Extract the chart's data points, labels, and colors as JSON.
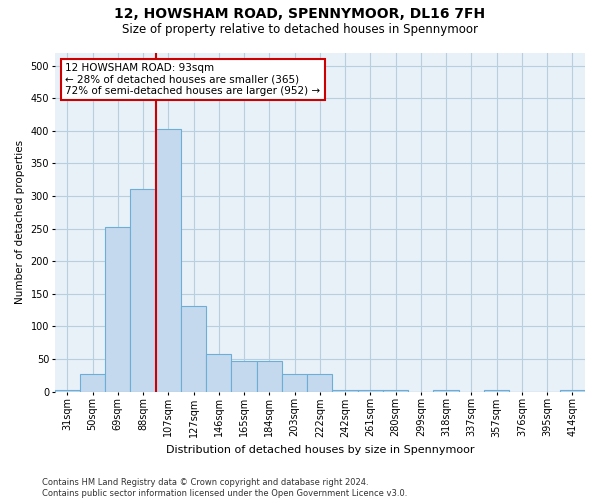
{
  "title": "12, HOWSHAM ROAD, SPENNYMOOR, DL16 7FH",
  "subtitle": "Size of property relative to detached houses in Spennymoor",
  "xlabel": "Distribution of detached houses by size in Spennymoor",
  "ylabel": "Number of detached properties",
  "categories": [
    "31sqm",
    "50sqm",
    "69sqm",
    "88sqm",
    "107sqm",
    "127sqm",
    "146sqm",
    "165sqm",
    "184sqm",
    "203sqm",
    "222sqm",
    "242sqm",
    "261sqm",
    "280sqm",
    "299sqm",
    "318sqm",
    "337sqm",
    "357sqm",
    "376sqm",
    "395sqm",
    "414sqm"
  ],
  "values": [
    2,
    27,
    252,
    310,
    403,
    132,
    57,
    47,
    47,
    27,
    27,
    3,
    2,
    2,
    0,
    3,
    0,
    2,
    0,
    0,
    2
  ],
  "bar_color": "#c5d9ee",
  "bar_edge_color": "#6baed6",
  "grid_color": "#b8cfe0",
  "bg_color": "#e8f0f8",
  "red_line_bin": 4,
  "annotation_text": "12 HOWSHAM ROAD: 93sqm\n← 28% of detached houses are smaller (365)\n72% of semi-detached houses are larger (952) →",
  "annotation_box_color": "#ffffff",
  "annotation_border_color": "#cc0000",
  "footer": "Contains HM Land Registry data © Crown copyright and database right 2024.\nContains public sector information licensed under the Open Government Licence v3.0.",
  "ylim": [
    0,
    520
  ],
  "yticks": [
    0,
    50,
    100,
    150,
    200,
    250,
    300,
    350,
    400,
    450,
    500
  ]
}
